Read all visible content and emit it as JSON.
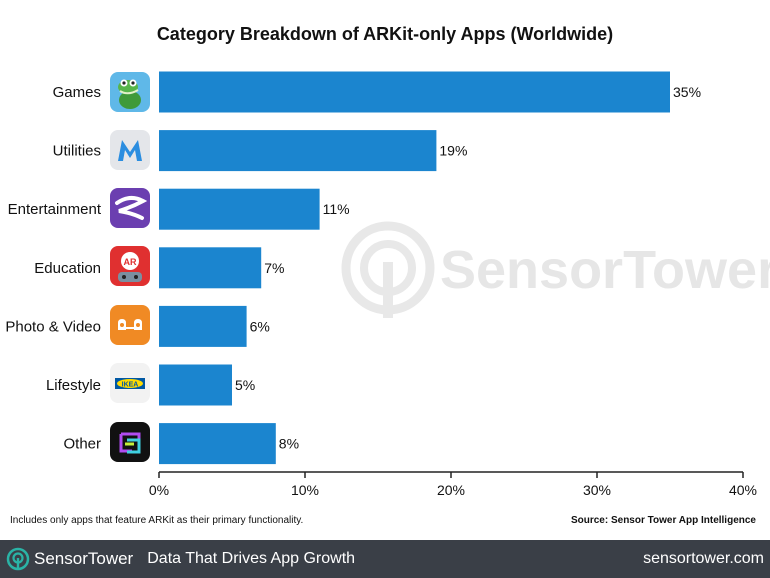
{
  "colors": {
    "bar": "#1b85cf",
    "footer_bg": "#3a3f47",
    "watermark": "#e6e6e6",
    "logo_accent": "#2ab3a6"
  },
  "chart_data": {
    "type": "bar",
    "orientation": "horizontal",
    "title": "Category Breakdown of ARKit-only Apps (Worldwide)",
    "categories": [
      "Games",
      "Utilities",
      "Entertainment",
      "Education",
      "Photo & Video",
      "Lifestyle",
      "Other"
    ],
    "values": [
      35,
      19,
      11,
      7,
      6,
      5,
      8
    ],
    "value_labels": [
      "35%",
      "19%",
      "11%",
      "7%",
      "6%",
      "5%",
      "8%"
    ],
    "xlim": [
      0,
      40
    ],
    "xticks": [
      0,
      10,
      20,
      30,
      40
    ],
    "xtick_labels": [
      "0%",
      "10%",
      "20%",
      "30%",
      "40%"
    ],
    "grid": false,
    "legend": "none",
    "category_icons": [
      "crocodile-app-icon",
      "m-logo-app-icon",
      "ribbon-app-icon",
      "ar-robot-app-icon",
      "ghost-emoji-app-icon",
      "ikea-app-icon",
      "frame-app-icon"
    ],
    "note": "Includes only apps that feature ARKit as their primary functionality.",
    "source": "Source: Sensor Tower App Intelligence",
    "watermark": "SensorTower"
  },
  "footer": {
    "brand_a": "Sensor",
    "brand_b": "Tower",
    "tagline": "Data That Drives App Growth",
    "url": "sensortower.com"
  }
}
